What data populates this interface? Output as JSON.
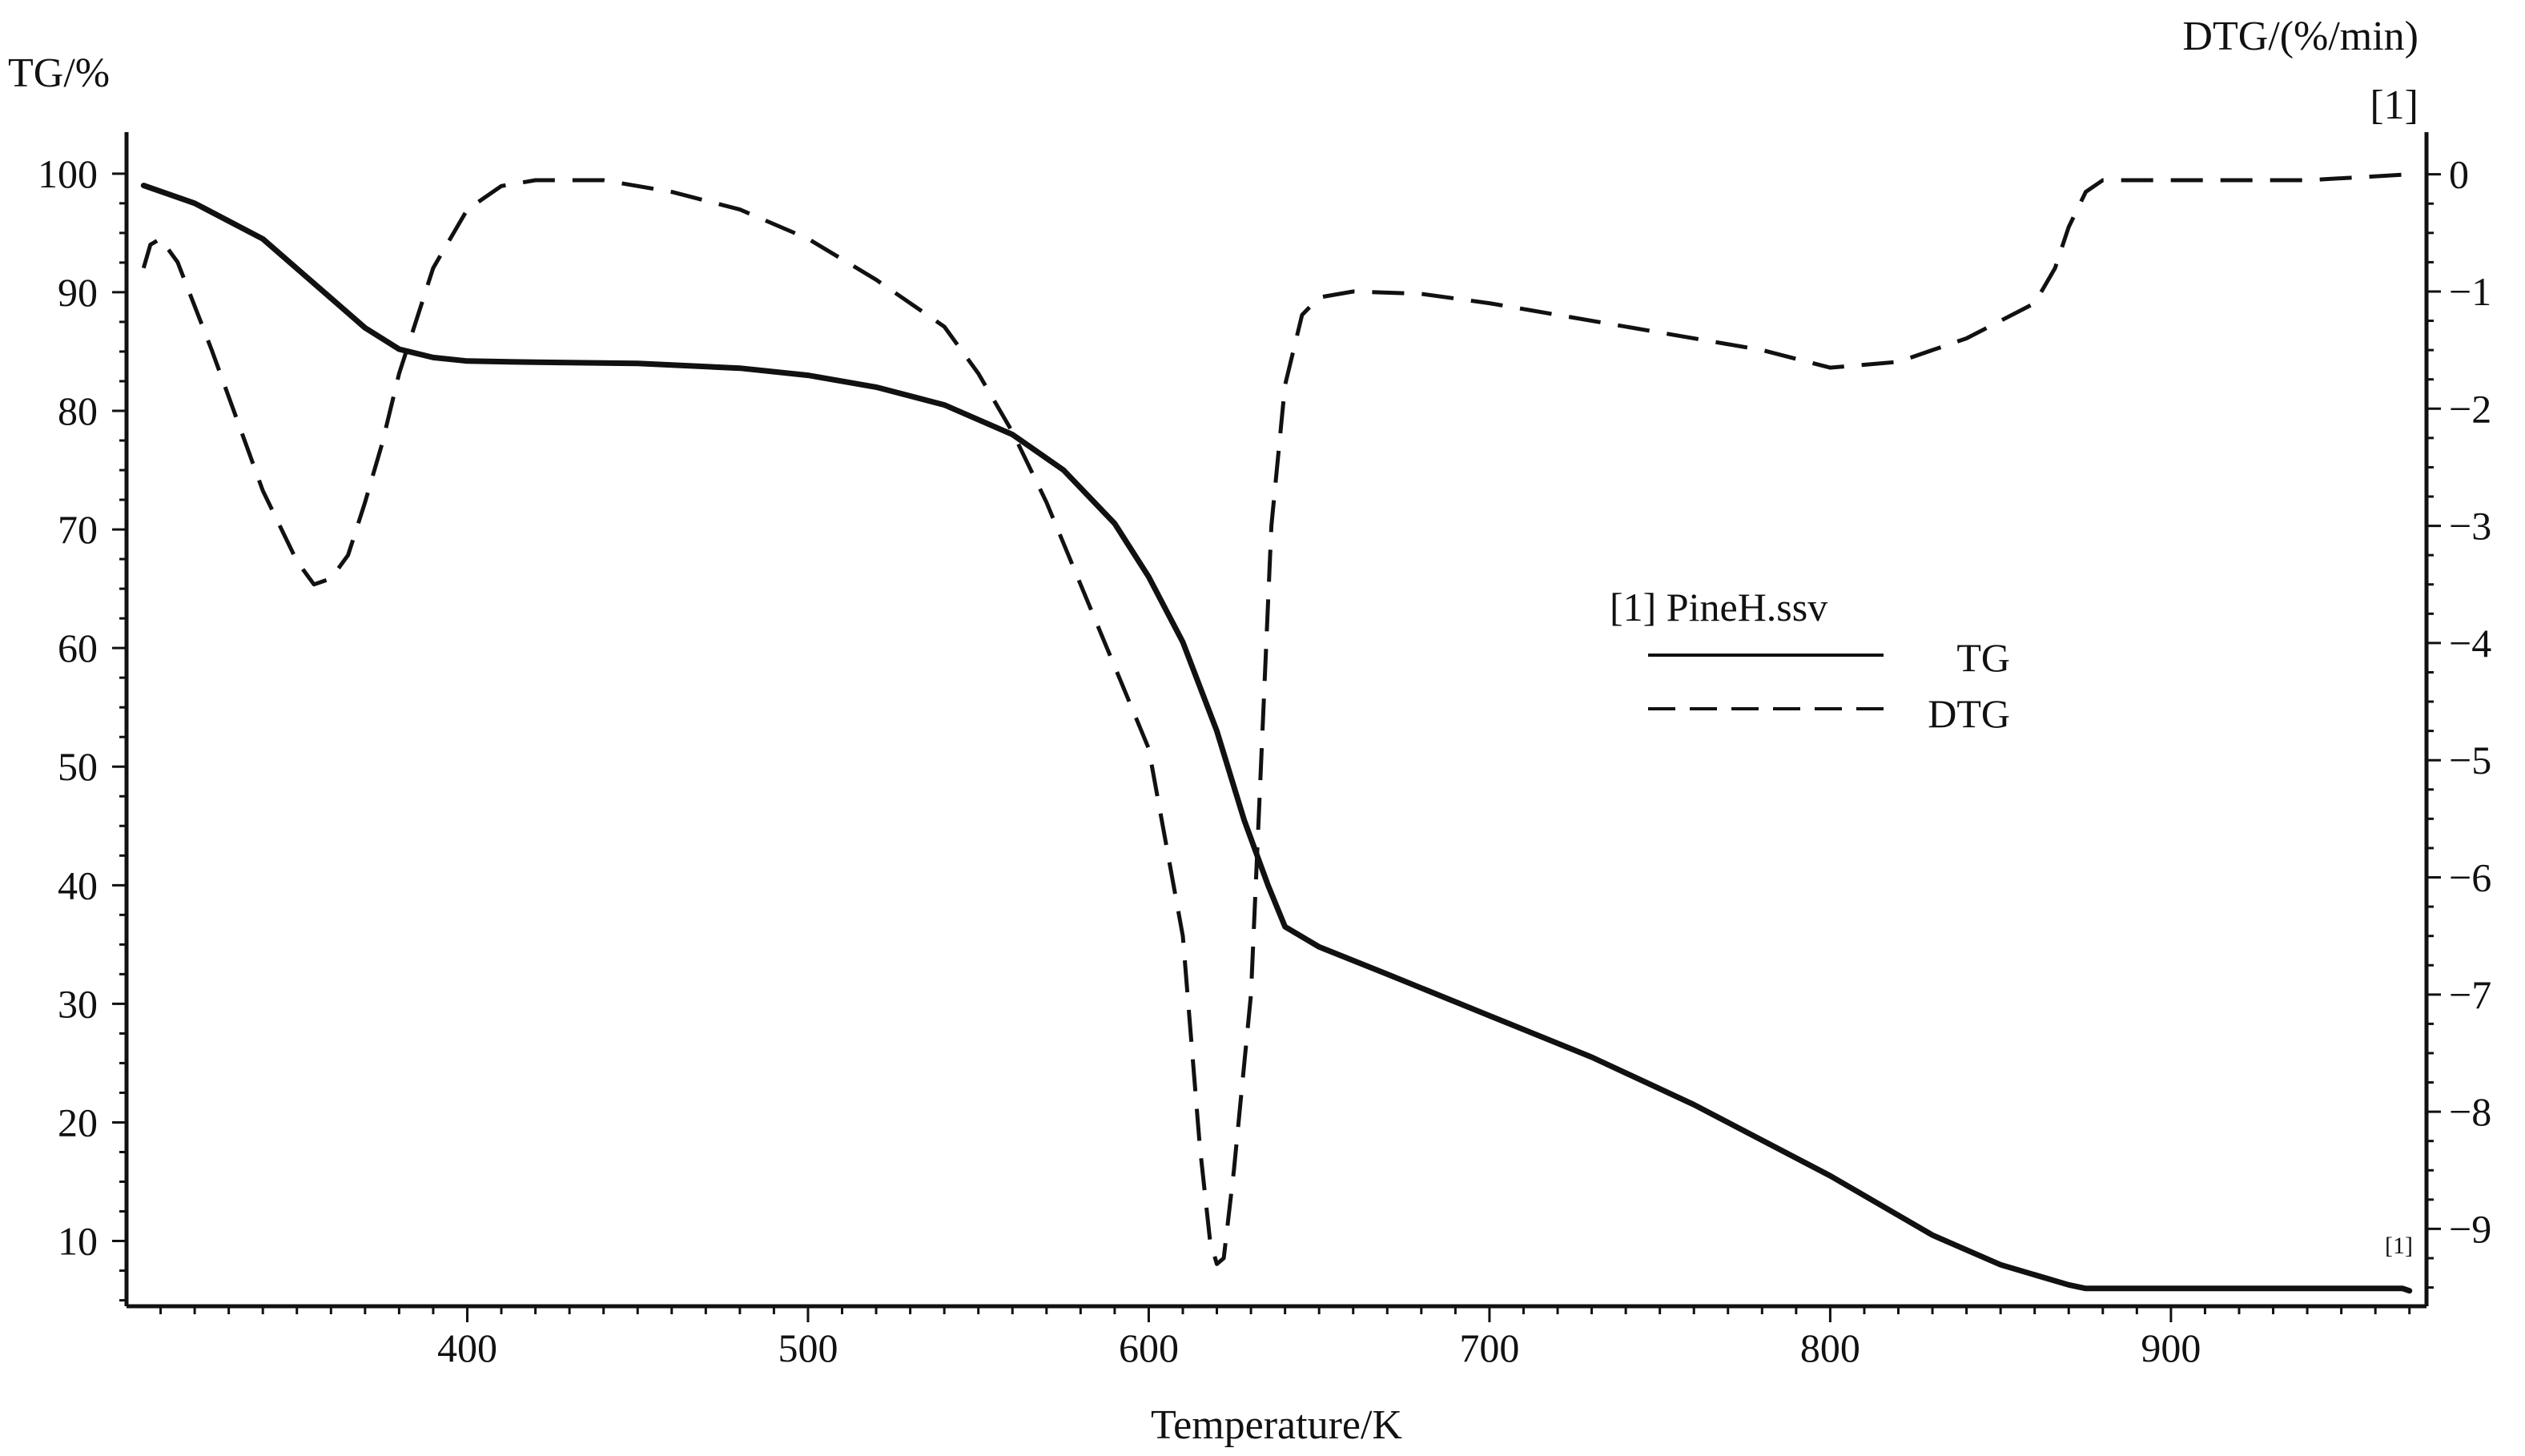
{
  "chart_data": {
    "type": "line",
    "legend": {
      "title": "[1] PineH.ssv",
      "placement": "center-right"
    },
    "x_axis": {
      "label": "Temperature/K",
      "range": [
        300,
        975
      ],
      "ticks": [
        400,
        500,
        600,
        700,
        800,
        900
      ],
      "tick_labels": [
        "400",
        "500",
        "600",
        "700",
        "800",
        "900"
      ]
    },
    "y_axis_left": {
      "label": "TG/%",
      "range": [
        4.5,
        103.5
      ],
      "ticks": [
        10,
        20,
        30,
        40,
        50,
        60,
        70,
        80,
        90,
        100
      ],
      "tick_labels": [
        "10",
        "20",
        "30",
        "40",
        "50",
        "60",
        "70",
        "80",
        "90",
        "100"
      ]
    },
    "y_axis_right": {
      "label": "DTG/(%/min)",
      "marker": "[1]",
      "range": [
        -9.66,
        0.36
      ],
      "ticks": [
        0,
        -1,
        -2,
        -3,
        -4,
        -5,
        -6,
        -7,
        -8,
        -9
      ],
      "tick_labels": [
        "0",
        "−1",
        "−2",
        "−3",
        "−4",
        "−5",
        "−6",
        "−7",
        "−8",
        "−9"
      ]
    },
    "end_marker": "[1]",
    "grid": false,
    "series": [
      {
        "name": "TG",
        "axis": "left",
        "style": "solid",
        "color": "#111111",
        "x": [
          305,
          320,
          340,
          360,
          370,
          380,
          390,
          400,
          420,
          450,
          480,
          500,
          520,
          540,
          560,
          575,
          590,
          600,
          610,
          620,
          628,
          635,
          640,
          650,
          670,
          700,
          730,
          760,
          800,
          830,
          850,
          870,
          875,
          900,
          950,
          968,
          970
        ],
        "y": [
          99,
          97.5,
          94.5,
          89.5,
          87,
          85.2,
          84.5,
          84.2,
          84.1,
          84,
          83.6,
          83,
          82,
          80.5,
          78,
          75,
          70.5,
          66,
          60.5,
          53,
          45.5,
          40,
          36.5,
          34.8,
          32.5,
          29,
          25.5,
          21.5,
          15.5,
          10.5,
          8,
          6.3,
          6,
          6,
          6,
          6,
          5.8
        ]
      },
      {
        "name": "DTG",
        "axis": "right",
        "style": "dashed",
        "color": "#111111",
        "x": [
          305,
          307,
          310,
          315,
          325,
          340,
          350,
          355,
          360,
          365,
          370,
          375,
          380,
          390,
          400,
          410,
          420,
          440,
          460,
          480,
          500,
          520,
          540,
          550,
          560,
          570,
          580,
          590,
          600,
          610,
          615,
          618,
          620,
          622,
          625,
          630,
          633,
          636,
          640,
          645,
          650,
          660,
          680,
          700,
          720,
          750,
          780,
          800,
          820,
          840,
          860,
          866,
          870,
          875,
          880,
          900,
          940,
          970
        ],
        "y": [
          -0.8,
          -0.6,
          -0.55,
          -0.75,
          -1.5,
          -2.7,
          -3.3,
          -3.5,
          -3.45,
          -3.25,
          -2.8,
          -2.3,
          -1.7,
          -0.8,
          -0.3,
          -0.1,
          -0.05,
          -0.05,
          -0.15,
          -0.3,
          -0.55,
          -0.9,
          -1.3,
          -1.7,
          -2.2,
          -2.8,
          -3.5,
          -4.2,
          -4.9,
          -6.5,
          -8.3,
          -9.1,
          -9.3,
          -9.25,
          -8.5,
          -7,
          -5,
          -3,
          -1.8,
          -1.2,
          -1.05,
          -1.0,
          -1.02,
          -1.1,
          -1.2,
          -1.35,
          -1.5,
          -1.65,
          -1.6,
          -1.4,
          -1.1,
          -0.8,
          -0.45,
          -0.15,
          -0.05,
          -0.05,
          -0.05,
          0
        ]
      }
    ]
  }
}
